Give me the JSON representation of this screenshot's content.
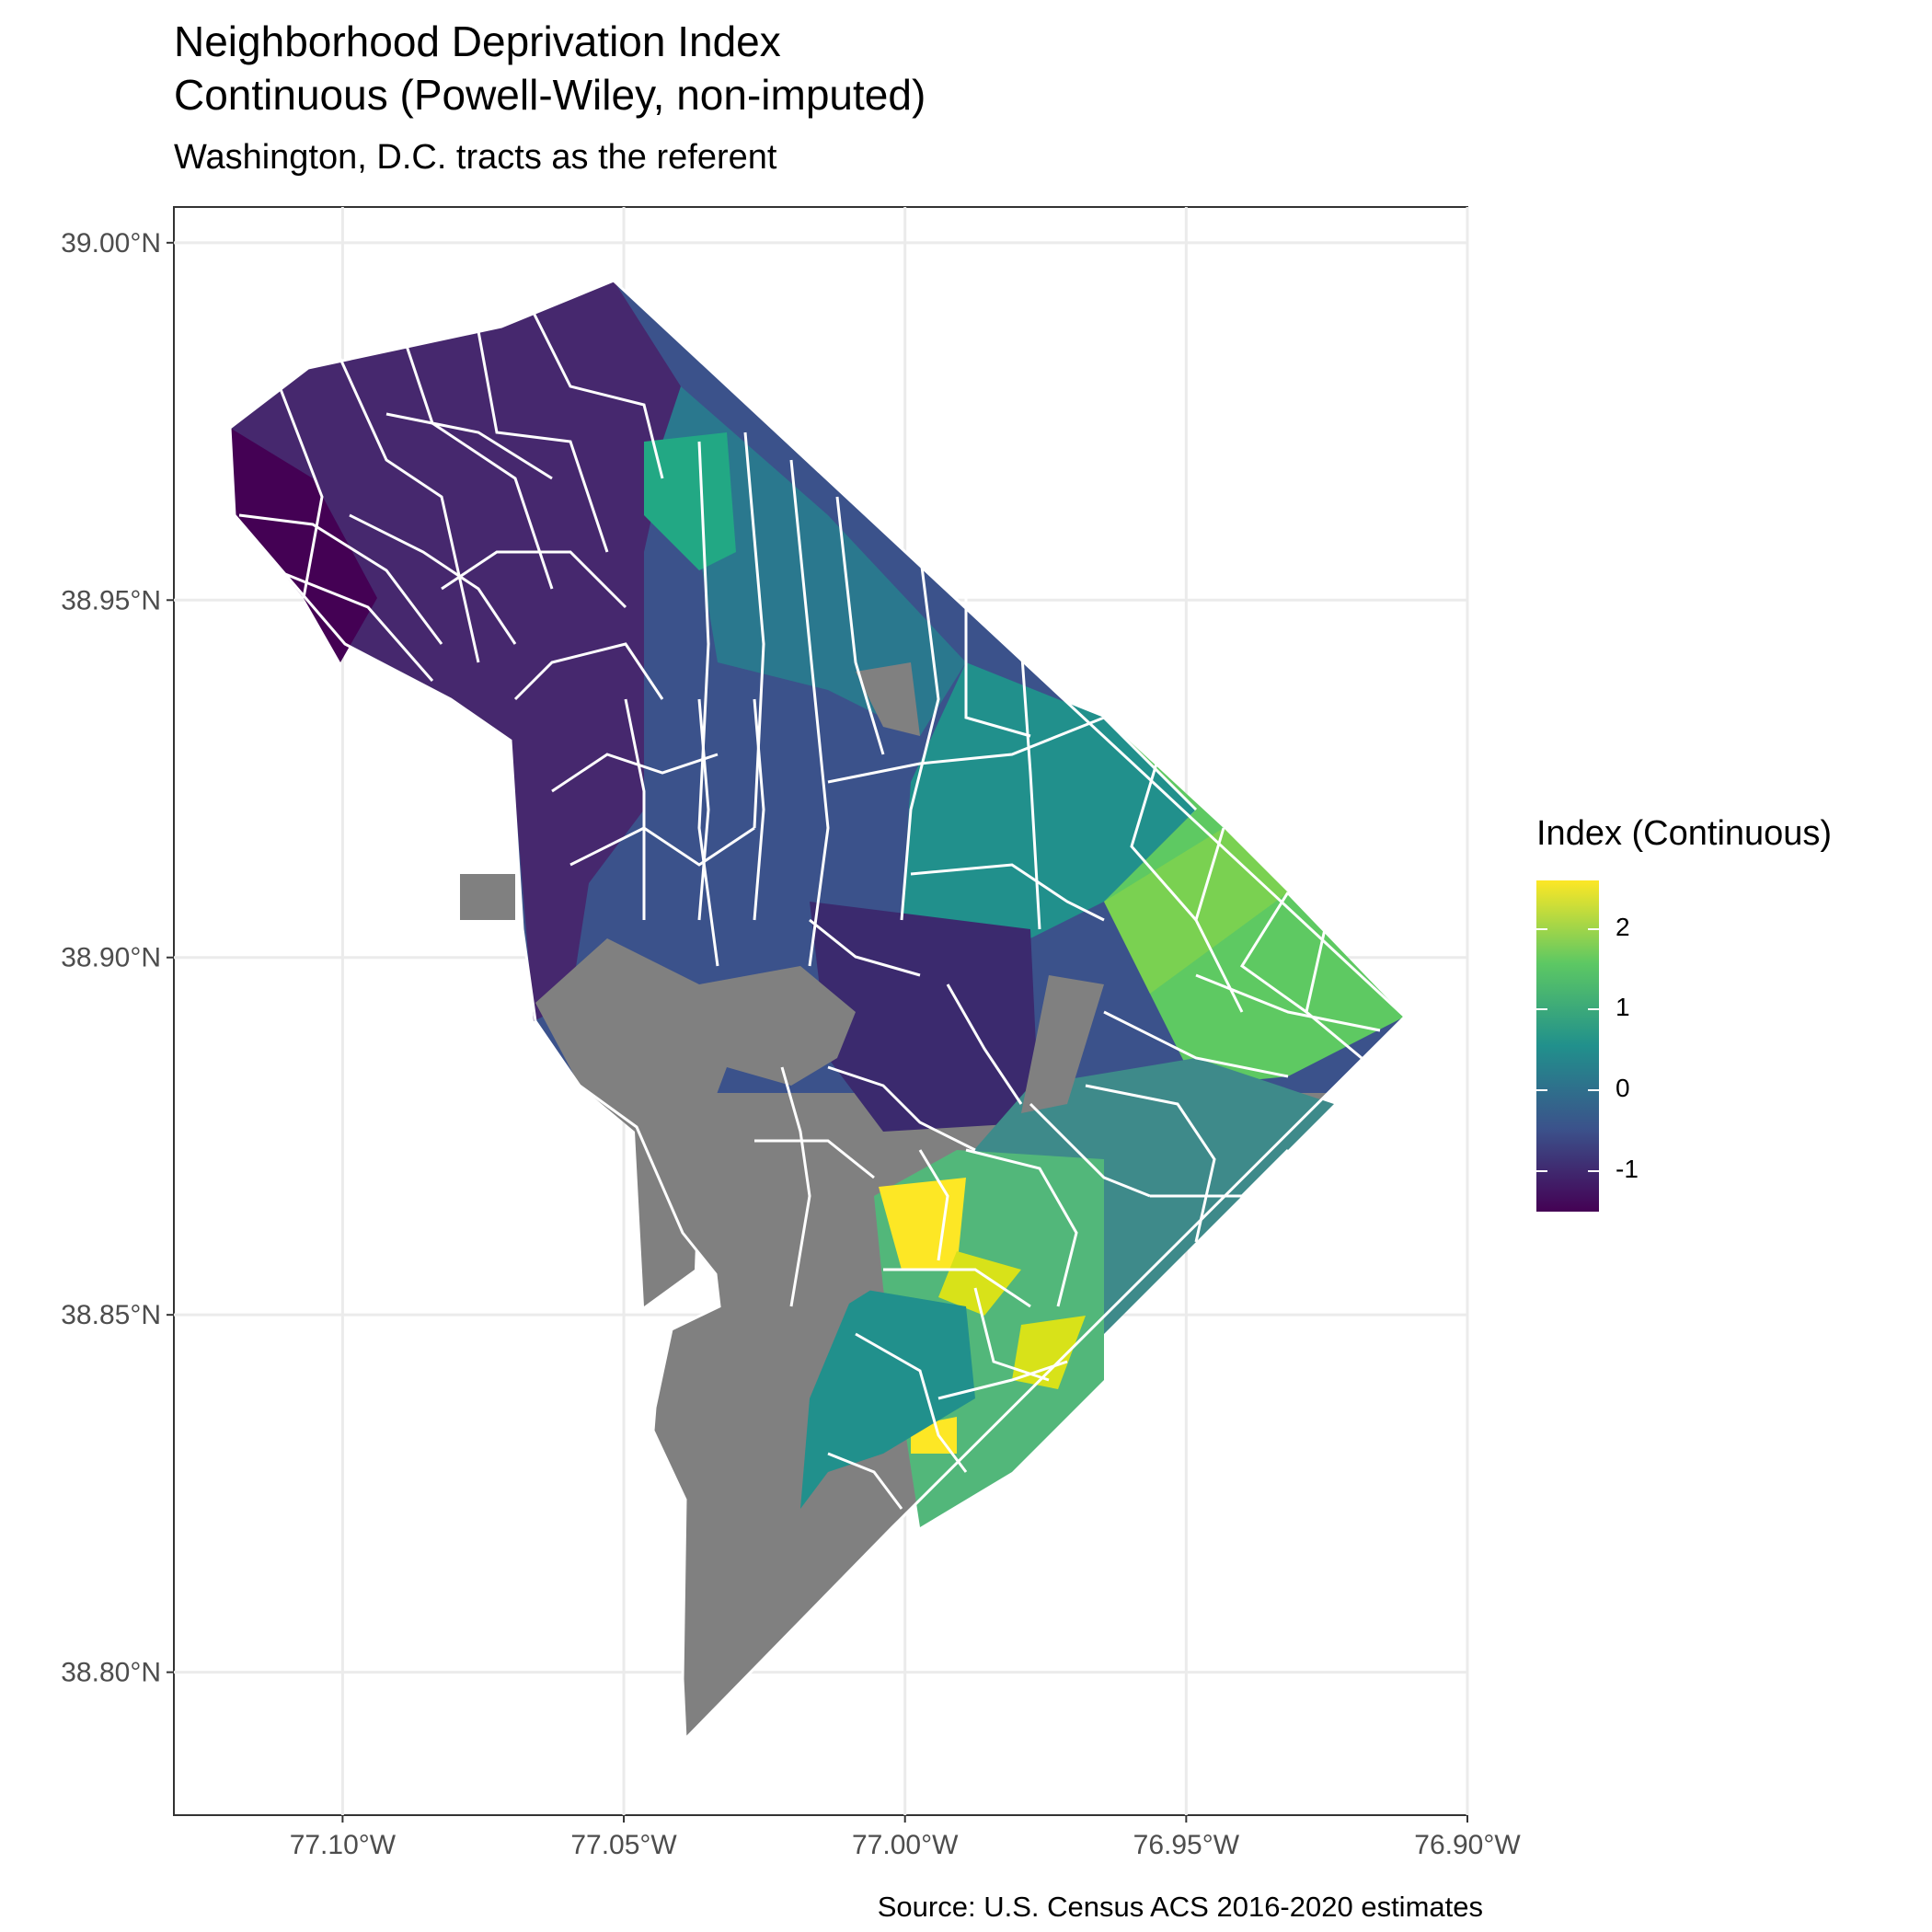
{
  "title": "Neighborhood Deprivation Index\nContinuous (Powell-Wiley, non-imputed)",
  "subtitle": "Washington, D.C. tracts as the referent",
  "caption": "Source: U.S. Census ACS 2016-2020 estimates",
  "map_data": {
    "projection": "lon/lat",
    "lon_range": [
      -77.13,
      -76.9
    ],
    "lat_range": [
      38.78,
      39.005
    ],
    "x_ticks": [
      {
        "value": -77.1,
        "label": "77.10°W"
      },
      {
        "value": -77.05,
        "label": "77.05°W"
      },
      {
        "value": -77.0,
        "label": "77.00°W"
      },
      {
        "value": -76.95,
        "label": "76.95°W"
      },
      {
        "value": -76.9,
        "label": "76.90°W"
      }
    ],
    "y_ticks": [
      {
        "value": 39.0,
        "label": "39.00°N"
      },
      {
        "value": 38.95,
        "label": "38.95°N"
      },
      {
        "value": 38.9,
        "label": "38.90°N"
      },
      {
        "value": 38.85,
        "label": "38.85°N"
      },
      {
        "value": 38.8,
        "label": "38.80°N"
      }
    ],
    "grid": true,
    "missing_color": "#808080",
    "boundary_color": "#ffffff"
  },
  "legend": {
    "title": "Index (Continuous)",
    "position": "right",
    "range": [
      -1.5,
      2.6
    ],
    "breaks": [
      {
        "value": 2,
        "label": "2"
      },
      {
        "value": 1,
        "label": "1"
      },
      {
        "value": 0,
        "label": "0"
      },
      {
        "value": -1,
        "label": "-1"
      }
    ],
    "palette": [
      "#440154",
      "#3b528b",
      "#21908c",
      "#5dc863",
      "#fde725"
    ]
  },
  "colors": {
    "very_low": "#440154",
    "low": "#3b528b",
    "mid": "#21908c",
    "high": "#5dc863",
    "very_high": "#fde725",
    "missing": "#808080"
  }
}
